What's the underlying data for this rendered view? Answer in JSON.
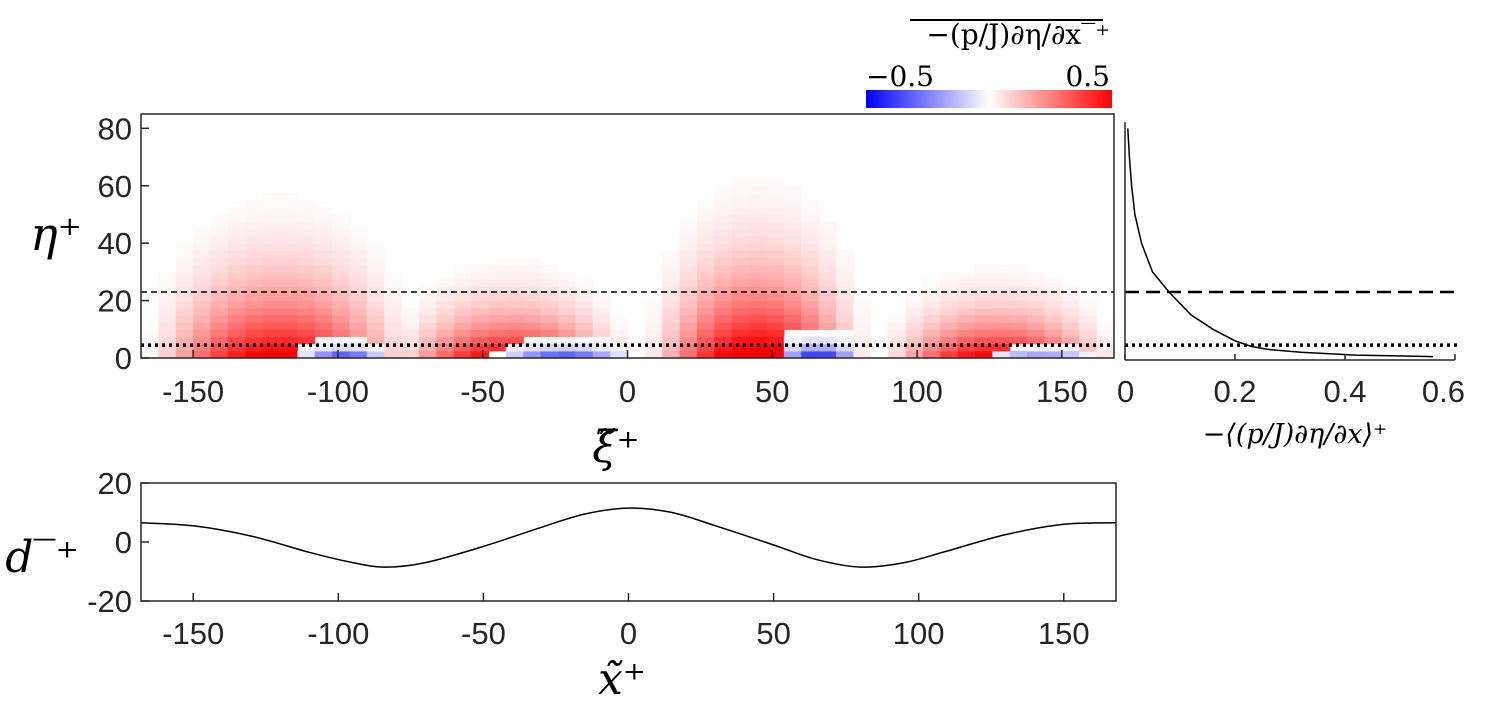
{
  "chart_data": [
    {
      "type": "heatmap",
      "title": "−(p/J)∂η/∂x‾⁺",
      "xlabel": "ξ̃⁺",
      "ylabel": "η⁺",
      "xlim": [
        -168,
        168
      ],
      "ylim": [
        0,
        85
      ],
      "xticks": [
        "-150",
        "-100",
        "-50",
        "0",
        "50",
        "100",
        "150"
      ],
      "xtick_values": [
        -150,
        -100,
        -50,
        0,
        50,
        100,
        150
      ],
      "yticks": [
        "0",
        "20",
        "40",
        "60",
        "80"
      ],
      "ytick_values": [
        0,
        20,
        40,
        60,
        80
      ],
      "colorbar": {
        "title": "−(p/J)∂η/∂x‾⁺",
        "min_label": "−0.5",
        "max_label": "0.5",
        "range": [
          -0.5,
          0.5
        ],
        "colors": [
          "#0000ff",
          "#ffffff",
          "#ff0000"
        ]
      },
      "reference_lines": [
        {
          "style": "dashed",
          "eta": 23
        },
        {
          "style": "dotted",
          "eta": 4.5
        }
      ],
      "structures": [
        {
          "xi_center": -120,
          "xi_halfwidth": 48,
          "eta_top": 70,
          "peak": 0.55
        },
        {
          "xi_center": -98,
          "xi_halfwidth": 16,
          "eta_top": 7,
          "peak": -0.55
        },
        {
          "xi_center": -40,
          "xi_halfwidth": 43,
          "eta_top": 43,
          "peak": 0.55
        },
        {
          "xi_center": -22,
          "xi_halfwidth": 24,
          "eta_top": 8,
          "peak": -0.5
        },
        {
          "xi_center": 45,
          "xi_halfwidth": 40,
          "eta_top": 77,
          "peak": 0.6
        },
        {
          "xi_center": 66,
          "xi_halfwidth": 15,
          "eta_top": 11,
          "peak": -0.55
        },
        {
          "xi_center": 128,
          "xi_halfwidth": 42,
          "eta_top": 40,
          "peak": 0.55
        },
        {
          "xi_center": 143,
          "xi_halfwidth": 20,
          "eta_top": 5,
          "peak": -0.4
        }
      ]
    },
    {
      "type": "line",
      "xlabel": "−⟨(p/J)∂η/∂x⟩⁺",
      "ylabel": "",
      "xlim": [
        0,
        0.6
      ],
      "ylim": [
        0,
        85
      ],
      "xticks": [
        "0",
        "0.2",
        "0.4",
        "0.6"
      ],
      "xtick_values": [
        0,
        0.2,
        0.4,
        0.6
      ],
      "series": [
        {
          "name": "profile",
          "eta": [
            80,
            70,
            60,
            50,
            40,
            30,
            23,
            15,
            10,
            6,
            4,
            3,
            2,
            1,
            0.5
          ],
          "values": [
            0.005,
            0.008,
            0.012,
            0.018,
            0.03,
            0.05,
            0.08,
            0.12,
            0.16,
            0.2,
            0.23,
            0.26,
            0.32,
            0.42,
            0.56
          ]
        }
      ],
      "reference_lines": [
        {
          "style": "dashed",
          "eta": 23
        },
        {
          "style": "dotted",
          "eta": 4.5
        }
      ]
    },
    {
      "type": "line",
      "xlabel": "x̃⁺",
      "ylabel": "d‾⁺",
      "xlim": [
        -168,
        168
      ],
      "ylim": [
        -20,
        20
      ],
      "xticks": [
        "-150",
        "-100",
        "-50",
        "0",
        "50",
        "100",
        "150"
      ],
      "xtick_values": [
        -150,
        -100,
        -50,
        0,
        50,
        100,
        150
      ],
      "yticks": [
        "-20",
        "0",
        "20"
      ],
      "ytick_values": [
        -20,
        0,
        20
      ],
      "series": [
        {
          "name": "surface",
          "x": [
            -168,
            -150,
            -130,
            -110,
            -95,
            -84,
            -70,
            -50,
            -30,
            -15,
            0,
            15,
            30,
            50,
            65,
            80,
            95,
            110,
            130,
            150,
            168
          ],
          "values": [
            6.5,
            5.5,
            2,
            -3.5,
            -7,
            -8.5,
            -7,
            -1.5,
            5,
            9.5,
            11.5,
            10,
            5.5,
            -1,
            -6,
            -8.5,
            -7,
            -3,
            2.5,
            6,
            6.5
          ]
        }
      ]
    }
  ]
}
